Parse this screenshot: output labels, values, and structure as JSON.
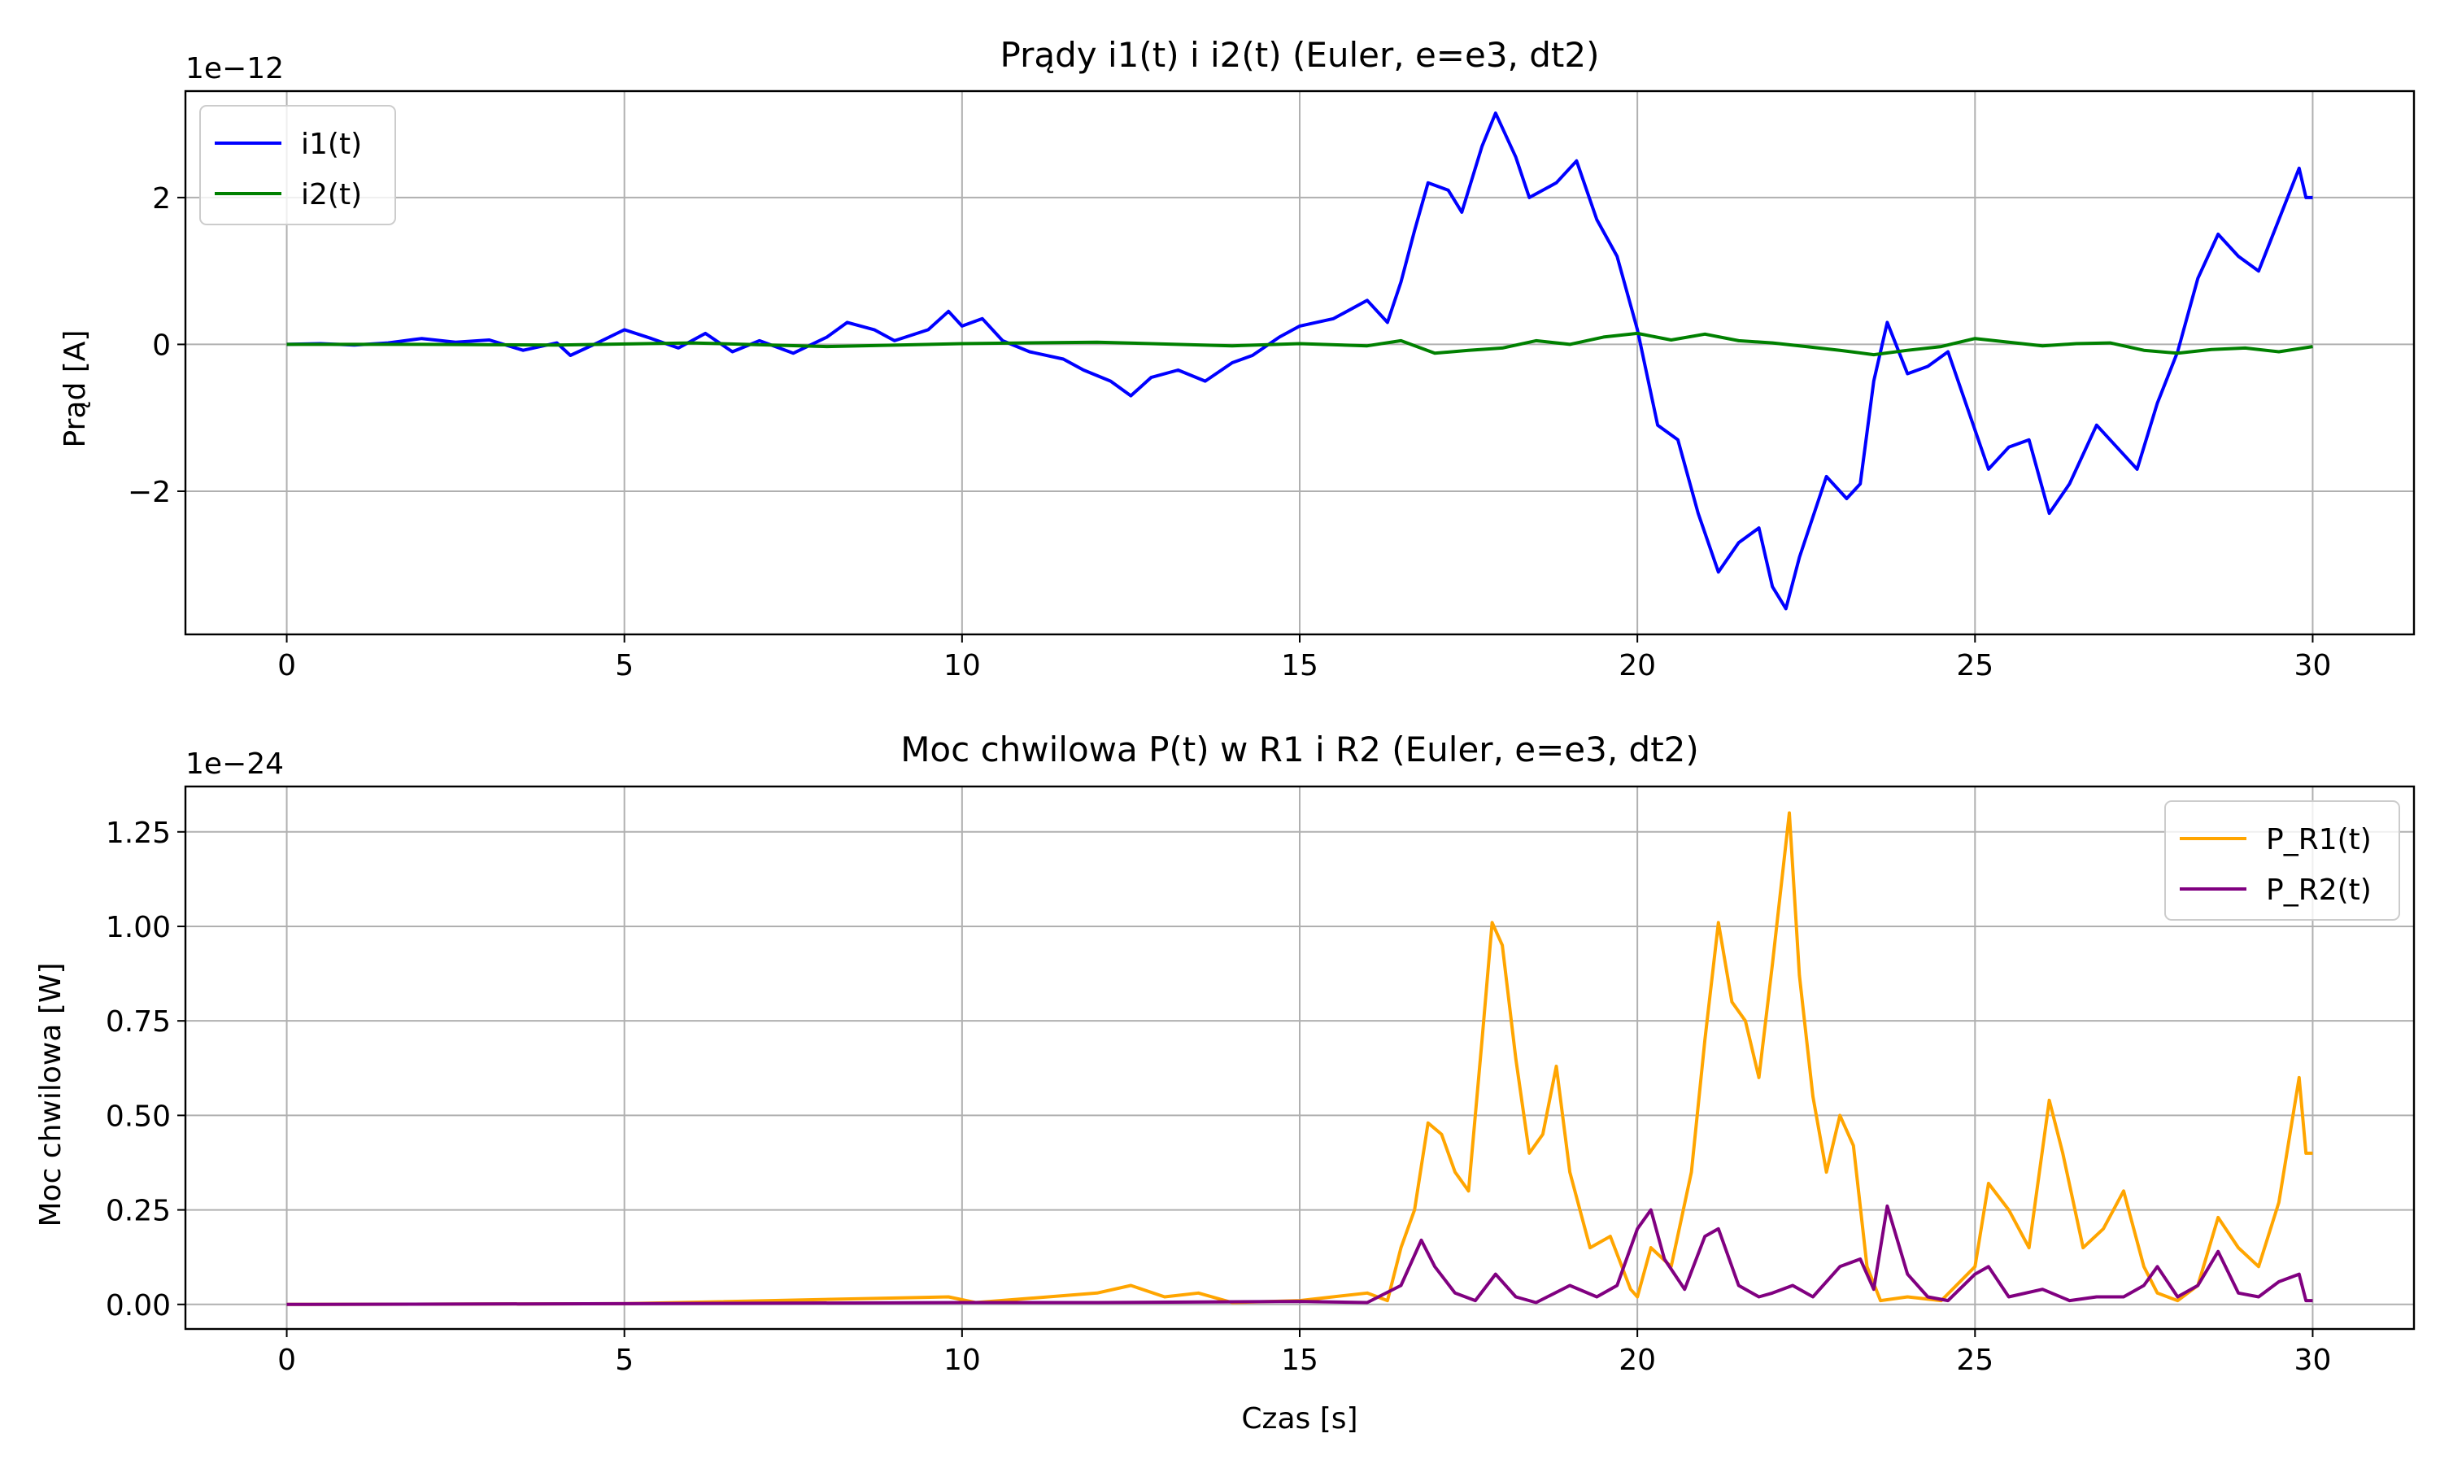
{
  "chart_data": [
    {
      "type": "line",
      "title": "Prądy i1(t) i i2(t) (Euler, e=e3, dt2)",
      "ylabel": "Prąd [A]",
      "xlabel": "",
      "offset_text": "1e−12",
      "scale": 1e-12,
      "xlim": [
        -1.5,
        31.5
      ],
      "ylim": [
        -3.95,
        3.45
      ],
      "x_ticks": [
        0,
        5,
        10,
        15,
        20,
        25,
        30
      ],
      "x_tick_labels": [
        "0",
        "5",
        "10",
        "15",
        "20",
        "25",
        "30"
      ],
      "y_ticks": [
        -2,
        0,
        2
      ],
      "y_tick_labels": [
        "−2",
        "0",
        "2"
      ],
      "grid": true,
      "legend_position": "upper-left",
      "series": [
        {
          "name": "i1(t)",
          "color": "#0000ff",
          "points": [
            [
              0,
              0
            ],
            [
              0.5,
              0.01
            ],
            [
              1,
              -0.01
            ],
            [
              1.5,
              0.02
            ],
            [
              2,
              0.08
            ],
            [
              2.5,
              0.03
            ],
            [
              3,
              0.06
            ],
            [
              3.5,
              -0.08
            ],
            [
              4,
              0.02
            ],
            [
              4.2,
              -0.15
            ],
            [
              4.6,
              0.02
            ],
            [
              5,
              0.2
            ],
            [
              5.4,
              0.08
            ],
            [
              5.8,
              -0.05
            ],
            [
              6.2,
              0.15
            ],
            [
              6.6,
              -0.1
            ],
            [
              7,
              0.05
            ],
            [
              7.5,
              -0.12
            ],
            [
              8,
              0.1
            ],
            [
              8.3,
              0.3
            ],
            [
              8.7,
              0.2
            ],
            [
              9,
              0.05
            ],
            [
              9.5,
              0.2
            ],
            [
              9.8,
              0.45
            ],
            [
              10,
              0.25
            ],
            [
              10.3,
              0.35
            ],
            [
              10.6,
              0.05
            ],
            [
              11,
              -0.1
            ],
            [
              11.5,
              -0.2
            ],
            [
              11.8,
              -0.35
            ],
            [
              12.2,
              -0.5
            ],
            [
              12.5,
              -0.7
            ],
            [
              12.8,
              -0.45
            ],
            [
              13.2,
              -0.35
            ],
            [
              13.6,
              -0.5
            ],
            [
              14,
              -0.25
            ],
            [
              14.3,
              -0.15
            ],
            [
              14.7,
              0.1
            ],
            [
              15,
              0.25
            ],
            [
              15.5,
              0.35
            ],
            [
              16,
              0.6
            ],
            [
              16.3,
              0.3
            ],
            [
              16.5,
              0.85
            ],
            [
              16.7,
              1.55
            ],
            [
              16.9,
              2.2
            ],
            [
              17.2,
              2.1
            ],
            [
              17.4,
              1.8
            ],
            [
              17.7,
              2.7
            ],
            [
              17.9,
              3.15
            ],
            [
              18.2,
              2.55
            ],
            [
              18.4,
              2.0
            ],
            [
              18.8,
              2.2
            ],
            [
              19.1,
              2.5
            ],
            [
              19.4,
              1.7
            ],
            [
              19.7,
              1.2
            ],
            [
              20,
              0.2
            ],
            [
              20.3,
              -1.1
            ],
            [
              20.6,
              -1.3
            ],
            [
              20.9,
              -2.3
            ],
            [
              21.2,
              -3.1
            ],
            [
              21.5,
              -2.7
            ],
            [
              21.8,
              -2.5
            ],
            [
              22,
              -3.3
            ],
            [
              22.2,
              -3.6
            ],
            [
              22.4,
              -2.9
            ],
            [
              22.8,
              -1.8
            ],
            [
              23.1,
              -2.1
            ],
            [
              23.3,
              -1.9
            ],
            [
              23.5,
              -0.5
            ],
            [
              23.7,
              0.3
            ],
            [
              24,
              -0.4
            ],
            [
              24.3,
              -0.3
            ],
            [
              24.6,
              -0.1
            ],
            [
              24.9,
              -0.9
            ],
            [
              25.2,
              -1.7
            ],
            [
              25.5,
              -1.4
            ],
            [
              25.8,
              -1.3
            ],
            [
              26.1,
              -2.3
            ],
            [
              26.4,
              -1.9
            ],
            [
              26.8,
              -1.1
            ],
            [
              27.1,
              -1.4
            ],
            [
              27.4,
              -1.7
            ],
            [
              27.7,
              -0.8
            ],
            [
              28,
              -0.1
            ],
            [
              28.3,
              0.9
            ],
            [
              28.6,
              1.5
            ],
            [
              28.9,
              1.2
            ],
            [
              29.2,
              1.0
            ],
            [
              29.5,
              1.7
            ],
            [
              29.8,
              2.4
            ],
            [
              29.9,
              2.0
            ],
            [
              30,
              2.0
            ]
          ]
        },
        {
          "name": "i2(t)",
          "color": "#008000",
          "points": [
            [
              0,
              0
            ],
            [
              2,
              0
            ],
            [
              4,
              -0.01
            ],
            [
              6,
              0.02
            ],
            [
              8,
              -0.03
            ],
            [
              10,
              0.01
            ],
            [
              12,
              0.03
            ],
            [
              14,
              -0.02
            ],
            [
              15,
              0.01
            ],
            [
              16,
              -0.02
            ],
            [
              16.5,
              0.05
            ],
            [
              17,
              -0.12
            ],
            [
              17.5,
              -0.08
            ],
            [
              18,
              -0.05
            ],
            [
              18.5,
              0.05
            ],
            [
              19,
              0
            ],
            [
              19.5,
              0.1
            ],
            [
              20,
              0.15
            ],
            [
              20.5,
              0.06
            ],
            [
              21,
              0.14
            ],
            [
              21.5,
              0.05
            ],
            [
              22,
              0.02
            ],
            [
              22.5,
              -0.03
            ],
            [
              23,
              -0.08
            ],
            [
              23.5,
              -0.14
            ],
            [
              24,
              -0.08
            ],
            [
              24.5,
              -0.03
            ],
            [
              25,
              0.08
            ],
            [
              25.5,
              0.03
            ],
            [
              26,
              -0.02
            ],
            [
              26.5,
              0.01
            ],
            [
              27,
              0.02
            ],
            [
              27.5,
              -0.08
            ],
            [
              28,
              -0.12
            ],
            [
              28.5,
              -0.07
            ],
            [
              29,
              -0.05
            ],
            [
              29.5,
              -0.1
            ],
            [
              30,
              -0.03
            ]
          ]
        }
      ]
    },
    {
      "type": "line",
      "title": "Moc chwilowa P(t) w R1 i R2 (Euler, e=e3, dt2)",
      "ylabel": "Moc chwilowa [W]",
      "xlabel": "Czas [s]",
      "offset_text": "1e−24",
      "scale": 1e-24,
      "xlim": [
        -1.5,
        31.5
      ],
      "ylim": [
        -0.065,
        1.37
      ],
      "x_ticks": [
        0,
        5,
        10,
        15,
        20,
        25,
        30
      ],
      "x_tick_labels": [
        "0",
        "5",
        "10",
        "15",
        "20",
        "25",
        "30"
      ],
      "y_ticks": [
        0,
        0.25,
        0.5,
        0.75,
        1.0,
        1.25
      ],
      "y_tick_labels": [
        "0.00",
        "0.25",
        "0.50",
        "0.75",
        "1.00",
        "1.25"
      ],
      "grid": true,
      "legend_position": "upper-right",
      "series": [
        {
          "name": "P_R1(t)",
          "color": "#ffa500",
          "points": [
            [
              0,
              0
            ],
            [
              5,
              0.002
            ],
            [
              9.8,
              0.02
            ],
            [
              10.2,
              0.005
            ],
            [
              12,
              0.03
            ],
            [
              12.5,
              0.05
            ],
            [
              13,
              0.02
            ],
            [
              13.5,
              0.03
            ],
            [
              14,
              0.005
            ],
            [
              15,
              0.01
            ],
            [
              16,
              0.03
            ],
            [
              16.3,
              0.01
            ],
            [
              16.5,
              0.15
            ],
            [
              16.7,
              0.25
            ],
            [
              16.9,
              0.48
            ],
            [
              17.1,
              0.45
            ],
            [
              17.3,
              0.35
            ],
            [
              17.5,
              0.3
            ],
            [
              17.7,
              0.7
            ],
            [
              17.85,
              1.01
            ],
            [
              18,
              0.95
            ],
            [
              18.2,
              0.65
            ],
            [
              18.4,
              0.4
            ],
            [
              18.6,
              0.45
            ],
            [
              18.8,
              0.63
            ],
            [
              19,
              0.35
            ],
            [
              19.3,
              0.15
            ],
            [
              19.6,
              0.18
            ],
            [
              19.9,
              0.04
            ],
            [
              20,
              0.02
            ],
            [
              20.2,
              0.15
            ],
            [
              20.5,
              0.1
            ],
            [
              20.8,
              0.35
            ],
            [
              21,
              0.7
            ],
            [
              21.2,
              1.01
            ],
            [
              21.4,
              0.8
            ],
            [
              21.6,
              0.75
            ],
            [
              21.8,
              0.6
            ],
            [
              22,
              0.9
            ],
            [
              22.25,
              1.3
            ],
            [
              22.4,
              0.87
            ],
            [
              22.6,
              0.55
            ],
            [
              22.8,
              0.35
            ],
            [
              23,
              0.5
            ],
            [
              23.2,
              0.42
            ],
            [
              23.4,
              0.1
            ],
            [
              23.6,
              0.01
            ],
            [
              24,
              0.02
            ],
            [
              24.5,
              0.01
            ],
            [
              25,
              0.1
            ],
            [
              25.2,
              0.32
            ],
            [
              25.5,
              0.25
            ],
            [
              25.8,
              0.15
            ],
            [
              26.1,
              0.54
            ],
            [
              26.3,
              0.4
            ],
            [
              26.6,
              0.15
            ],
            [
              26.9,
              0.2
            ],
            [
              27.2,
              0.3
            ],
            [
              27.5,
              0.1
            ],
            [
              27.7,
              0.03
            ],
            [
              28,
              0.01
            ],
            [
              28.3,
              0.05
            ],
            [
              28.6,
              0.23
            ],
            [
              28.9,
              0.15
            ],
            [
              29.2,
              0.1
            ],
            [
              29.5,
              0.27
            ],
            [
              29.8,
              0.6
            ],
            [
              29.9,
              0.4
            ],
            [
              30,
              0.4
            ]
          ]
        },
        {
          "name": "P_R2(t)",
          "color": "#800080",
          "points": [
            [
              0,
              0
            ],
            [
              5,
              0.002
            ],
            [
              10,
              0.005
            ],
            [
              12,
              0.005
            ],
            [
              15,
              0.008
            ],
            [
              16,
              0.005
            ],
            [
              16.5,
              0.05
            ],
            [
              16.8,
              0.17
            ],
            [
              17,
              0.1
            ],
            [
              17.3,
              0.03
            ],
            [
              17.6,
              0.01
            ],
            [
              17.9,
              0.08
            ],
            [
              18.2,
              0.02
            ],
            [
              18.5,
              0.005
            ],
            [
              19,
              0.05
            ],
            [
              19.4,
              0.02
            ],
            [
              19.7,
              0.05
            ],
            [
              20,
              0.2
            ],
            [
              20.2,
              0.25
            ],
            [
              20.4,
              0.12
            ],
            [
              20.7,
              0.04
            ],
            [
              21,
              0.18
            ],
            [
              21.2,
              0.2
            ],
            [
              21.5,
              0.05
            ],
            [
              21.8,
              0.02
            ],
            [
              22,
              0.03
            ],
            [
              22.3,
              0.05
            ],
            [
              22.6,
              0.02
            ],
            [
              23,
              0.1
            ],
            [
              23.3,
              0.12
            ],
            [
              23.5,
              0.04
            ],
            [
              23.7,
              0.26
            ],
            [
              24,
              0.08
            ],
            [
              24.3,
              0.02
            ],
            [
              24.6,
              0.01
            ],
            [
              25,
              0.08
            ],
            [
              25.2,
              0.1
            ],
            [
              25.5,
              0.02
            ],
            [
              26,
              0.04
            ],
            [
              26.4,
              0.01
            ],
            [
              26.8,
              0.02
            ],
            [
              27.2,
              0.02
            ],
            [
              27.5,
              0.05
            ],
            [
              27.7,
              0.1
            ],
            [
              28,
              0.02
            ],
            [
              28.3,
              0.05
            ],
            [
              28.6,
              0.14
            ],
            [
              28.9,
              0.03
            ],
            [
              29.2,
              0.02
            ],
            [
              29.5,
              0.06
            ],
            [
              29.8,
              0.08
            ],
            [
              29.9,
              0.01
            ],
            [
              30,
              0.01
            ]
          ]
        }
      ]
    }
  ]
}
